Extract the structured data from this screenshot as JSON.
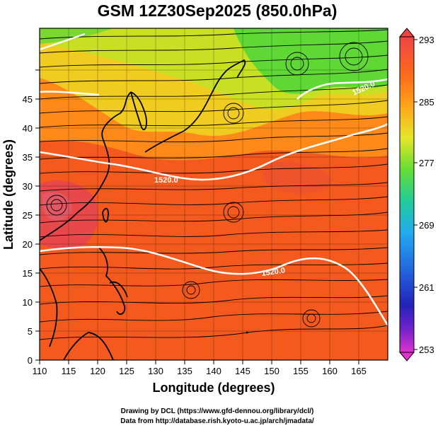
{
  "title": "GSM 12Z30Sep2025 (850.0hPa)",
  "xlabel": "Longitude (degrees)",
  "ylabel": "Latitude  (degrees)",
  "x_ticks": [
    "110",
    "115",
    "120",
    "125",
    "130",
    "135",
    "140",
    "145",
    "150",
    "155",
    "160",
    "165"
  ],
  "y_ticks": [
    "0",
    "5",
    "10",
    "15",
    "20",
    "25",
    "30",
    "35",
    "40",
    "45"
  ],
  "colorbar": {
    "ticks": [
      "293",
      "285",
      "277",
      "269",
      "261",
      "253"
    ],
    "colors": [
      "#ee4444",
      "#ff6a1a",
      "#ffa51a",
      "#e6e62a",
      "#66dd33",
      "#22cc99",
      "#22aaee",
      "#2266dd",
      "#2222bb",
      "#7722cc",
      "#dd33cc"
    ]
  },
  "contour_labels": [
    "1520.0",
    "1520.0",
    "1520.0"
  ],
  "credits": {
    "line1": "Drawing by DCL (https://www.gfd-dennou.org/library/dcl/)",
    "line2": "Data from http://database.rish.kyoto-u.ac.jp/arch/jmadata/"
  },
  "chart_data": {
    "type": "map",
    "variable": "temperature (K) at 850.0 hPa with streamlines and geopotential height contours",
    "xlim": [
      110,
      170
    ],
    "ylim": [
      0,
      50
    ],
    "colorbar_range": [
      253,
      293
    ],
    "contour_value": 1520.0
  }
}
